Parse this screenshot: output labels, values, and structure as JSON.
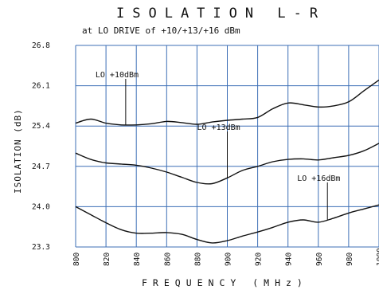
{
  "chart_data": {
    "type": "line",
    "title": "ISOLATION L-R",
    "subtitle": "at LO DRIVE of +10/+13/+16 dBm",
    "xlabel": "FREQUENCY (MHz)",
    "ylabel": "ISOLATION (dB)",
    "xlim": [
      800,
      1000
    ],
    "ylim": [
      23.3,
      26.8
    ],
    "x_ticks": [
      "800",
      "820",
      "840",
      "860",
      "880",
      "900",
      "920",
      "940",
      "960",
      "980",
      "1000"
    ],
    "y_ticks": [
      "23.3",
      "24.0",
      "24.7",
      "25.4",
      "26.1",
      "26.8"
    ],
    "grid": true,
    "x": [
      800,
      810,
      820,
      830,
      840,
      850,
      860,
      870,
      880,
      890,
      900,
      910,
      920,
      930,
      940,
      950,
      960,
      970,
      980,
      990,
      1000
    ],
    "series": [
      {
        "name": "LO +10dBm",
        "values": [
          25.45,
          25.52,
          25.45,
          25.42,
          25.42,
          25.44,
          25.48,
          25.46,
          25.43,
          25.47,
          25.5,
          25.52,
          25.55,
          25.7,
          25.8,
          25.77,
          25.73,
          25.75,
          25.82,
          26.01,
          26.2
        ]
      },
      {
        "name": "LO +13dBm",
        "values": [
          24.93,
          24.82,
          24.76,
          24.74,
          24.72,
          24.67,
          24.6,
          24.51,
          24.42,
          24.4,
          24.5,
          24.63,
          24.7,
          24.78,
          24.82,
          24.83,
          24.81,
          24.85,
          24.89,
          24.97,
          25.1
        ]
      },
      {
        "name": "LO +16dBm",
        "values": [
          24.0,
          23.86,
          23.72,
          23.6,
          23.54,
          23.54,
          23.55,
          23.52,
          23.43,
          23.37,
          23.41,
          23.49,
          23.56,
          23.64,
          23.73,
          23.77,
          23.73,
          23.8,
          23.89,
          23.96,
          24.03
        ]
      }
    ],
    "annotations": [
      {
        "text": "LO +10dBm",
        "series": 0,
        "at_x": 833
      },
      {
        "text": "LO +13dBm",
        "series": 1,
        "at_x": 900
      },
      {
        "text": "LO +16dBm",
        "series": 2,
        "at_x": 966
      }
    ]
  }
}
